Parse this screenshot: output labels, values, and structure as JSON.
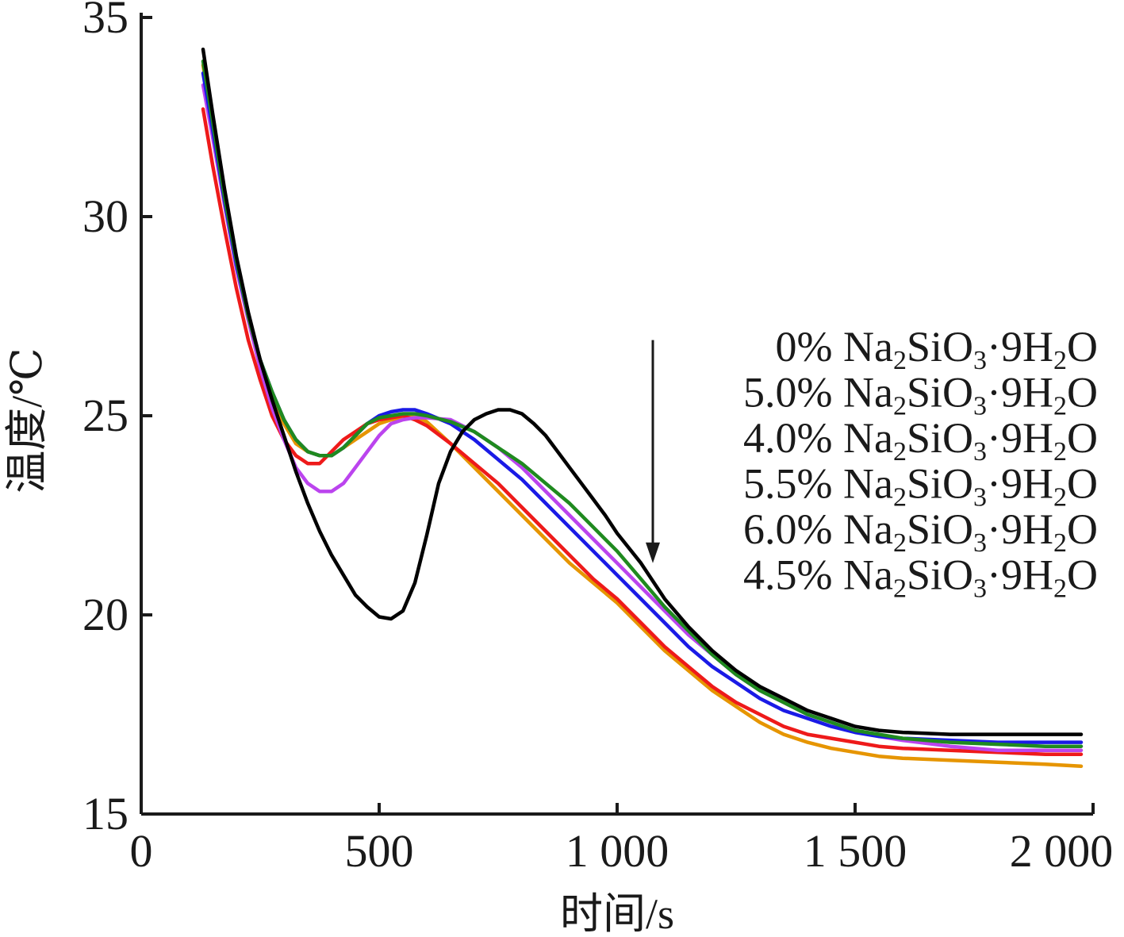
{
  "chart_data": {
    "type": "line",
    "xlabel": "时间/s",
    "ylabel": "温度/℃",
    "xlim": [
      0,
      2000
    ],
    "ylim": [
      15,
      35
    ],
    "x_ticks": [
      {
        "value": 0,
        "label": "0"
      },
      {
        "value": 500,
        "label": "500"
      },
      {
        "value": 1000,
        "label": "1 000"
      },
      {
        "value": 1500,
        "label": "1 500"
      },
      {
        "value": 2000,
        "label": "2 000"
      }
    ],
    "y_ticks": [
      {
        "value": 15,
        "label": "15"
      },
      {
        "value": 20,
        "label": "20"
      },
      {
        "value": 25,
        "label": "25"
      },
      {
        "value": 30,
        "label": "30"
      },
      {
        "value": 35,
        "label": "35"
      }
    ],
    "grid": false,
    "legend_position": "right",
    "legend_label_parts": [
      "Na",
      "2",
      "SiO",
      "3",
      "·9H",
      "2",
      "O"
    ],
    "annotation": {
      "type": "arrow",
      "x": 1075,
      "y_from": 26.9,
      "y_to": 21.3
    },
    "series": [
      {
        "name": "0% Na2SiO3·9H2O",
        "legend_prefix": "0%",
        "color": "#000000",
        "x": [
          130,
          150,
          175,
          200,
          225,
          250,
          275,
          300,
          325,
          350,
          375,
          400,
          425,
          450,
          475,
          500,
          525,
          550,
          575,
          600,
          625,
          650,
          675,
          700,
          725,
          750,
          775,
          800,
          825,
          850,
          875,
          900,
          925,
          950,
          975,
          1000,
          1050,
          1100,
          1150,
          1200,
          1250,
          1300,
          1350,
          1400,
          1450,
          1500,
          1550,
          1600,
          1700,
          1800,
          1900,
          1975
        ],
        "values": [
          34.2,
          32.6,
          30.7,
          29.0,
          27.6,
          26.4,
          25.4,
          24.5,
          23.6,
          22.8,
          22.1,
          21.5,
          21.0,
          20.5,
          20.2,
          19.95,
          19.9,
          20.1,
          20.8,
          22.0,
          23.3,
          24.1,
          24.6,
          24.9,
          25.05,
          25.15,
          25.15,
          25.05,
          24.8,
          24.5,
          24.1,
          23.7,
          23.3,
          22.9,
          22.5,
          22.05,
          21.3,
          20.4,
          19.7,
          19.1,
          18.6,
          18.2,
          17.9,
          17.6,
          17.4,
          17.2,
          17.1,
          17.05,
          17.0,
          17.0,
          17.0,
          17.0
        ]
      },
      {
        "name": "5.0% Na2SiO3·9H2O",
        "legend_prefix": "5.0%",
        "color": "#1f8a1f",
        "x": [
          130,
          150,
          175,
          200,
          225,
          250,
          275,
          300,
          325,
          350,
          375,
          400,
          425,
          450,
          475,
          500,
          525,
          550,
          575,
          600,
          650,
          700,
          750,
          800,
          850,
          900,
          950,
          1000,
          1050,
          1100,
          1150,
          1200,
          1250,
          1300,
          1350,
          1400,
          1450,
          1500,
          1550,
          1600,
          1700,
          1800,
          1900,
          1975
        ],
        "values": [
          33.9,
          32.4,
          30.5,
          28.9,
          27.5,
          26.4,
          25.6,
          24.9,
          24.4,
          24.1,
          24.0,
          24.0,
          24.2,
          24.5,
          24.8,
          24.95,
          25.0,
          25.05,
          25.05,
          25.0,
          24.85,
          24.6,
          24.2,
          23.8,
          23.3,
          22.8,
          22.2,
          21.6,
          20.9,
          20.2,
          19.6,
          19.0,
          18.5,
          18.1,
          17.8,
          17.5,
          17.3,
          17.1,
          17.0,
          16.9,
          16.8,
          16.75,
          16.7,
          16.7
        ]
      },
      {
        "name": "4.0% Na2SiO3·9H2O",
        "legend_prefix": "4.0%",
        "color": "#1a1ae6",
        "x": [
          130,
          150,
          175,
          200,
          225,
          250,
          275,
          300,
          325,
          350,
          375,
          400,
          425,
          450,
          475,
          500,
          525,
          550,
          575,
          600,
          650,
          700,
          750,
          800,
          850,
          900,
          950,
          1000,
          1050,
          1100,
          1150,
          1200,
          1250,
          1300,
          1350,
          1400,
          1450,
          1500,
          1550,
          1600,
          1700,
          1800,
          1900,
          1975
        ],
        "values": [
          33.6,
          32.2,
          30.4,
          28.8,
          27.5,
          26.4,
          25.6,
          24.9,
          24.4,
          24.1,
          24.0,
          24.0,
          24.2,
          24.5,
          24.8,
          25.0,
          25.1,
          25.15,
          25.15,
          25.05,
          24.8,
          24.4,
          23.9,
          23.4,
          22.8,
          22.2,
          21.6,
          21.0,
          20.4,
          19.8,
          19.2,
          18.7,
          18.3,
          17.9,
          17.6,
          17.4,
          17.2,
          17.05,
          16.95,
          16.9,
          16.85,
          16.8,
          16.8,
          16.8
        ]
      },
      {
        "name": "5.5% Na2SiO3·9H2O",
        "legend_prefix": "5.5%",
        "color": "#bb44ee",
        "x": [
          130,
          150,
          175,
          200,
          225,
          250,
          275,
          300,
          325,
          350,
          375,
          400,
          425,
          450,
          475,
          500,
          525,
          550,
          575,
          600,
          650,
          700,
          750,
          800,
          850,
          900,
          950,
          1000,
          1050,
          1100,
          1150,
          1200,
          1250,
          1300,
          1350,
          1400,
          1450,
          1500,
          1550,
          1600,
          1700,
          1800,
          1900,
          1975
        ],
        "values": [
          33.3,
          32.0,
          30.3,
          28.7,
          27.4,
          26.2,
          25.2,
          24.4,
          23.7,
          23.3,
          23.1,
          23.1,
          23.3,
          23.7,
          24.1,
          24.5,
          24.8,
          24.9,
          24.95,
          24.95,
          24.9,
          24.6,
          24.2,
          23.7,
          23.1,
          22.5,
          21.9,
          21.3,
          20.7,
          20.1,
          19.5,
          19.0,
          18.5,
          18.1,
          17.8,
          17.5,
          17.3,
          17.1,
          16.95,
          16.85,
          16.7,
          16.6,
          16.6,
          16.6
        ]
      },
      {
        "name": "6.0% Na2SiO3·9H2O",
        "legend_prefix": "6.0%",
        "color": "#ee1a1a",
        "x": [
          130,
          150,
          175,
          200,
          225,
          250,
          275,
          300,
          325,
          350,
          375,
          400,
          425,
          450,
          475,
          500,
          525,
          550,
          575,
          600,
          650,
          700,
          750,
          800,
          850,
          900,
          950,
          1000,
          1050,
          1100,
          1150,
          1200,
          1250,
          1300,
          1350,
          1400,
          1450,
          1500,
          1550,
          1600,
          1700,
          1800,
          1900,
          1975
        ],
        "values": [
          32.7,
          31.3,
          29.7,
          28.2,
          26.9,
          25.9,
          25.0,
          24.4,
          24.0,
          23.8,
          23.8,
          24.1,
          24.4,
          24.6,
          24.8,
          24.9,
          24.95,
          25.0,
          24.9,
          24.75,
          24.3,
          23.8,
          23.3,
          22.7,
          22.1,
          21.5,
          20.9,
          20.4,
          19.8,
          19.2,
          18.7,
          18.2,
          17.8,
          17.5,
          17.2,
          17.0,
          16.9,
          16.8,
          16.7,
          16.65,
          16.6,
          16.55,
          16.5,
          16.5
        ]
      },
      {
        "name": "4.5% Na2SiO3·9H2O",
        "legend_prefix": "4.5%",
        "color": "#e69500",
        "x": [
          130,
          150,
          175,
          200,
          225,
          250,
          275,
          300,
          325,
          350,
          375,
          400,
          425,
          450,
          475,
          500,
          525,
          550,
          575,
          600,
          650,
          700,
          750,
          800,
          850,
          900,
          950,
          1000,
          1050,
          1100,
          1150,
          1200,
          1250,
          1300,
          1350,
          1400,
          1450,
          1500,
          1550,
          1600,
          1700,
          1800,
          1900,
          1975
        ],
        "values": [
          33.8,
          32.3,
          30.5,
          28.9,
          27.5,
          26.4,
          25.5,
          24.8,
          24.3,
          24.1,
          24.0,
          24.0,
          24.2,
          24.4,
          24.6,
          24.8,
          24.9,
          24.95,
          25.0,
          24.85,
          24.3,
          23.7,
          23.1,
          22.5,
          21.9,
          21.3,
          20.8,
          20.3,
          19.7,
          19.1,
          18.6,
          18.1,
          17.7,
          17.3,
          17.0,
          16.8,
          16.65,
          16.55,
          16.45,
          16.4,
          16.35,
          16.3,
          16.25,
          16.2
        ]
      }
    ]
  }
}
